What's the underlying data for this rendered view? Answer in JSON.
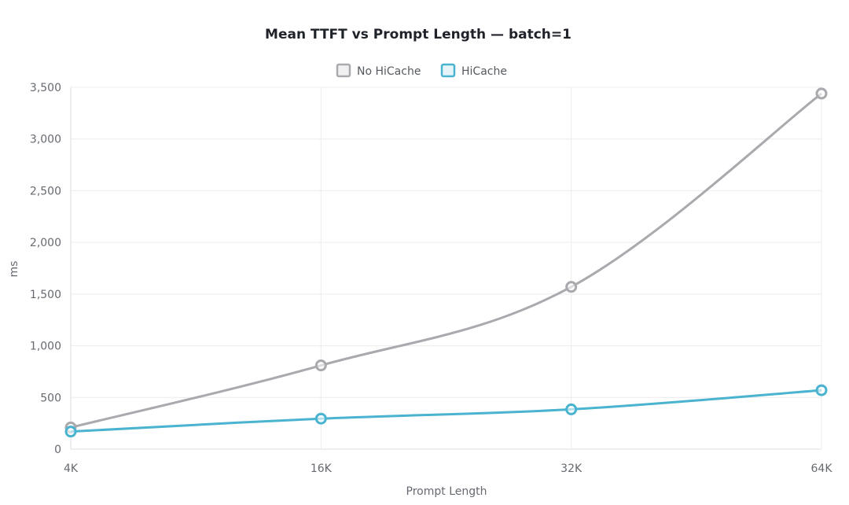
{
  "chart_data": {
    "type": "line",
    "title": "Mean TTFT vs Prompt Length — batch=1",
    "xlabel": "Prompt Length",
    "ylabel": "ms",
    "categories": [
      "4K",
      "16K",
      "32K",
      "64K"
    ],
    "ylim": [
      0,
      3500
    ],
    "yticks": [
      0,
      500,
      1000,
      1500,
      2000,
      2500,
      3000,
      3500
    ],
    "ytick_labels": [
      "0",
      "500",
      "1,000",
      "1,500",
      "2,000",
      "2,500",
      "3,000",
      "3,500"
    ],
    "grid": true,
    "legend_position": "top",
    "series": [
      {
        "name": "No HiCache",
        "color": "#a9a9ae",
        "values": [
          210,
          810,
          1570,
          3440
        ]
      },
      {
        "name": "HiCache",
        "color": "#4ab3cf",
        "values": [
          170,
          295,
          385,
          570
        ]
      }
    ]
  }
}
